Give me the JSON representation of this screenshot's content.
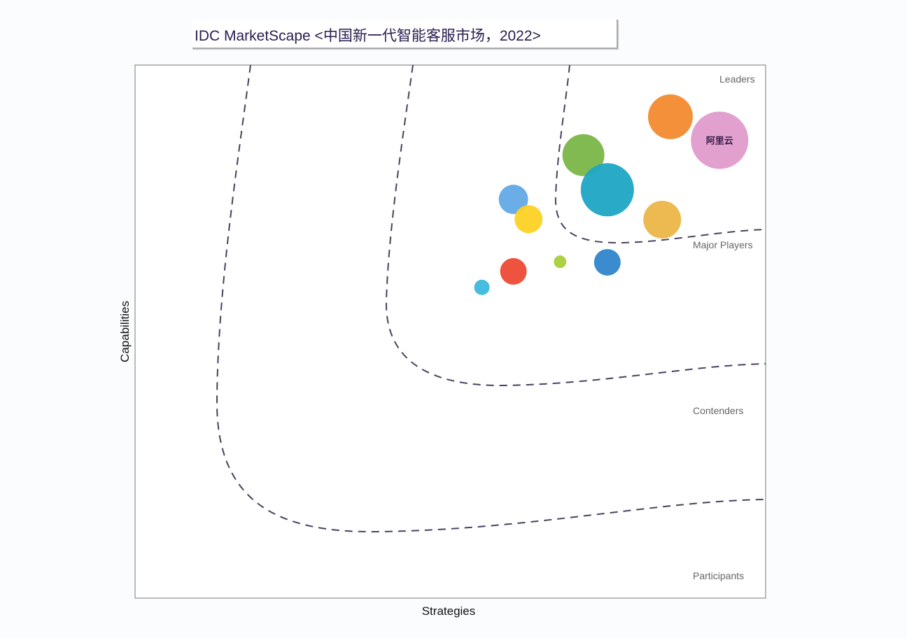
{
  "chart_data": {
    "type": "scatter",
    "title": "IDC MarketScape <中国新一代智能客服市场，2022>",
    "xlabel": "Strategies",
    "ylabel": "Capabilities",
    "xlim": [
      0,
      1
    ],
    "ylim": [
      0,
      1
    ],
    "grid": false,
    "segments": [
      "Leaders",
      "Major Players",
      "Contenders",
      "Participants"
    ],
    "points": [
      {
        "label": "",
        "x": 0.849,
        "y": 0.903,
        "size": 32,
        "color": "#f28a2e"
      },
      {
        "label": "阿里云",
        "x": 0.927,
        "y": 0.859,
        "size": 41,
        "color": "#e09bcb"
      },
      {
        "label": "",
        "x": 0.711,
        "y": 0.831,
        "size": 30,
        "color": "#7ab648"
      },
      {
        "label": "",
        "x": 0.749,
        "y": 0.766,
        "size": 38,
        "color": "#1ea6c4"
      },
      {
        "label": "",
        "x": 0.836,
        "y": 0.71,
        "size": 27,
        "color": "#ebb648"
      },
      {
        "label": "",
        "x": 0.6,
        "y": 0.748,
        "size": 21,
        "color": "#62a9e6"
      },
      {
        "label": "",
        "x": 0.624,
        "y": 0.711,
        "size": 20,
        "color": "#fdd124"
      },
      {
        "label": "",
        "x": 0.749,
        "y": 0.63,
        "size": 19,
        "color": "#2f86cc"
      },
      {
        "label": "",
        "x": 0.674,
        "y": 0.631,
        "size": 9,
        "color": "#a8cf3a"
      },
      {
        "label": "",
        "x": 0.6,
        "y": 0.613,
        "size": 19,
        "color": "#ec4a35"
      },
      {
        "label": "",
        "x": 0.55,
        "y": 0.583,
        "size": 11,
        "color": "#3cb8dc"
      }
    ]
  }
}
